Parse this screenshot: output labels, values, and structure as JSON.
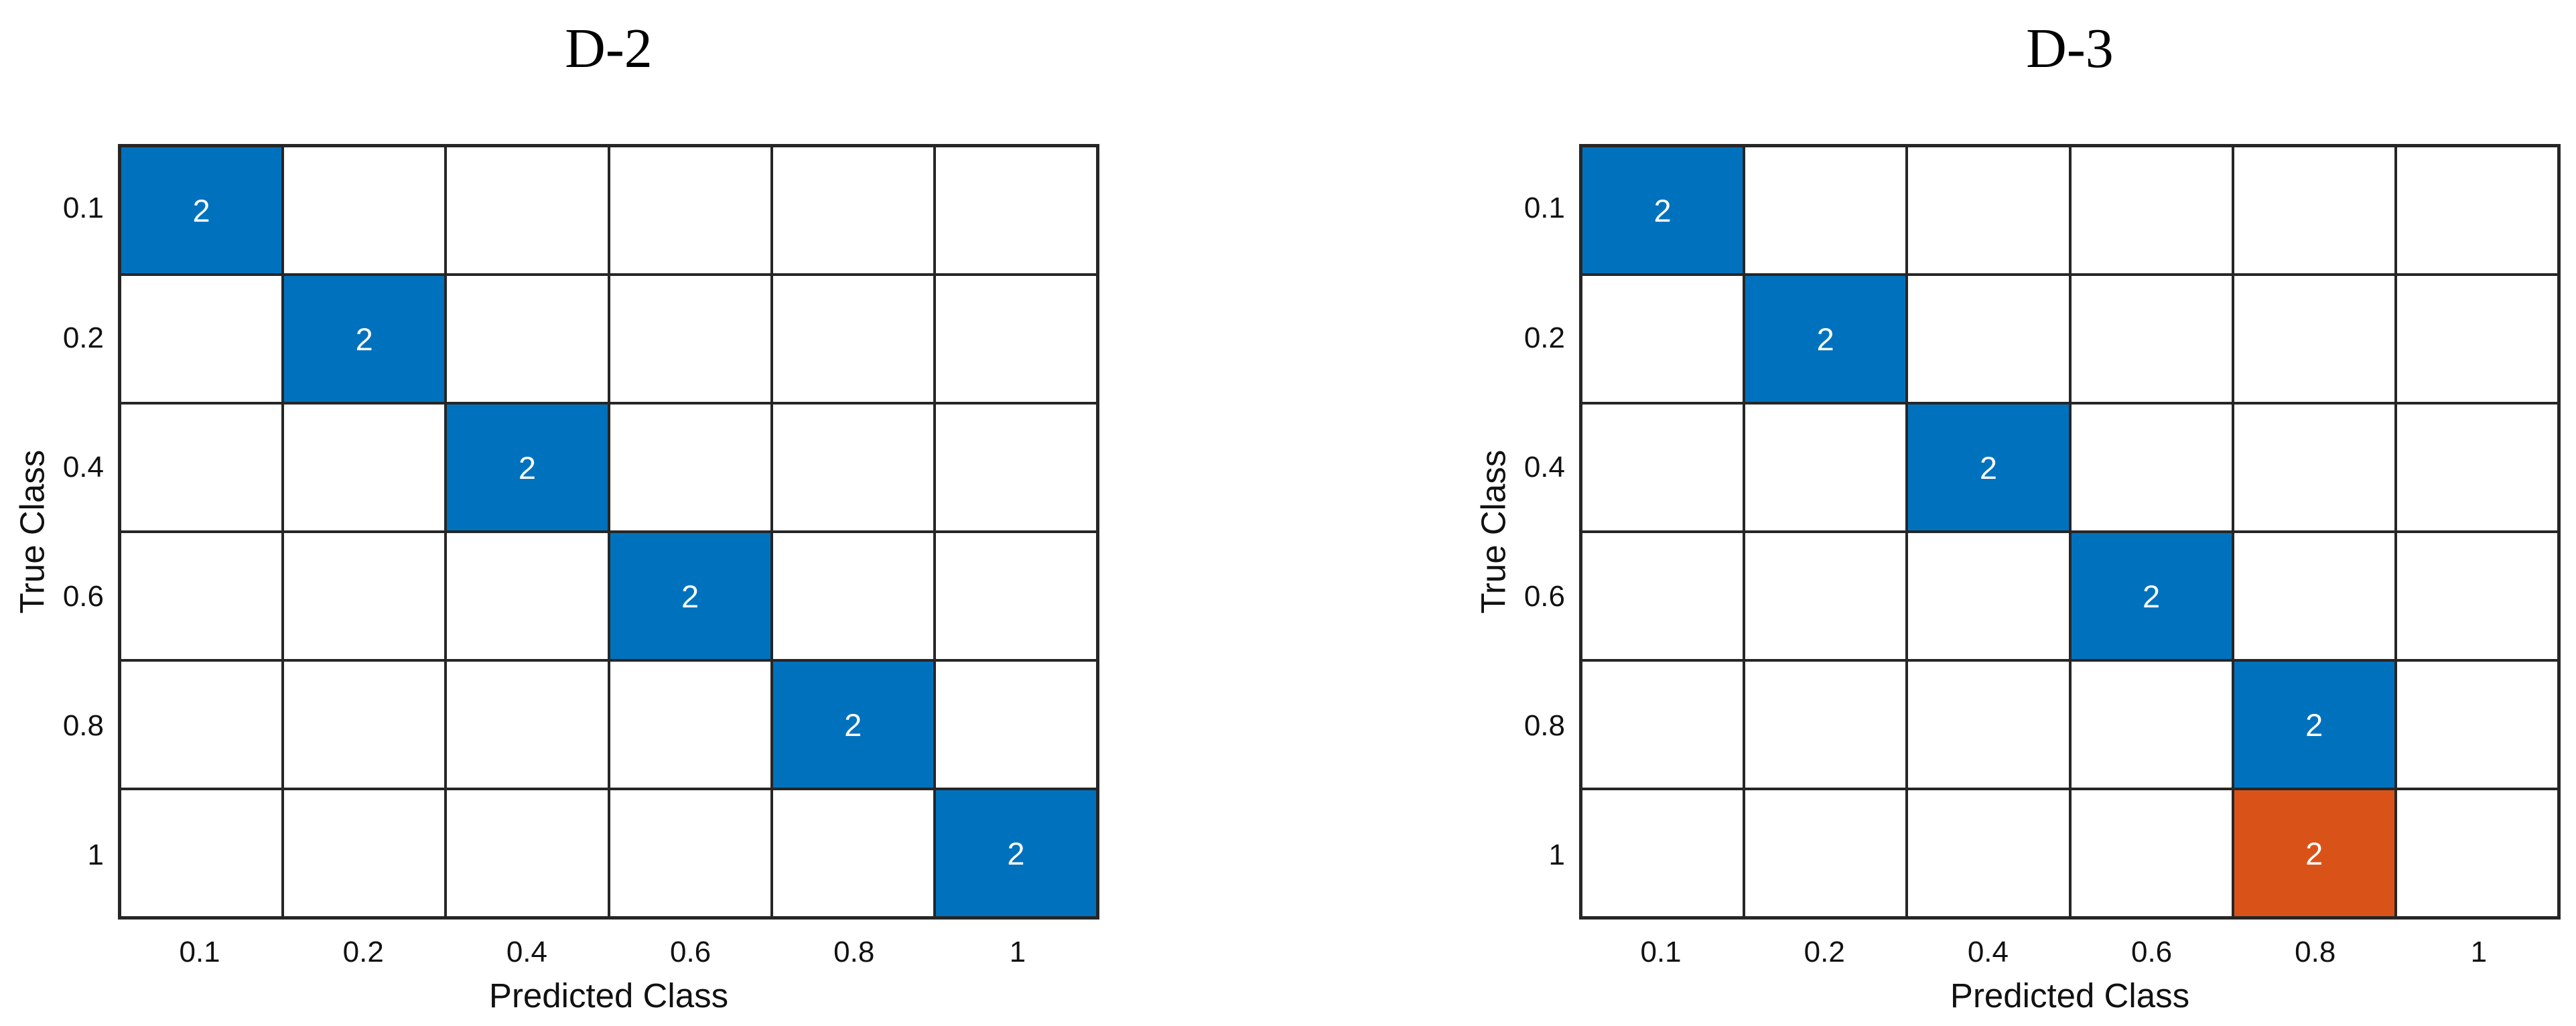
{
  "colors": {
    "diagonal_fill": "#0072BD",
    "off_diagonal_fill": "#D95319",
    "grid_line": "#262626",
    "cell_value_text": "#FFFFFF",
    "label_text": "#111111"
  },
  "chart_data": [
    {
      "type": "heatmap",
      "subtype": "confusion-matrix",
      "title": "D-2",
      "xlabel": "Predicted Class",
      "ylabel": "True Class",
      "x_categories": [
        "0.1",
        "0.2",
        "0.4",
        "0.6",
        "0.8",
        "1"
      ],
      "y_categories": [
        "0.1",
        "0.2",
        "0.4",
        "0.6",
        "0.8",
        "1"
      ],
      "grid": true,
      "legend": "none",
      "matrix": [
        [
          2,
          null,
          null,
          null,
          null,
          null
        ],
        [
          null,
          2,
          null,
          null,
          null,
          null
        ],
        [
          null,
          null,
          2,
          null,
          null,
          null
        ],
        [
          null,
          null,
          null,
          2,
          null,
          null
        ],
        [
          null,
          null,
          null,
          null,
          2,
          null
        ],
        [
          null,
          null,
          null,
          null,
          null,
          2
        ]
      ]
    },
    {
      "type": "heatmap",
      "subtype": "confusion-matrix",
      "title": "D-3",
      "xlabel": "Predicted Class",
      "ylabel": "True Class",
      "x_categories": [
        "0.1",
        "0.2",
        "0.4",
        "0.6",
        "0.8",
        "1"
      ],
      "y_categories": [
        "0.1",
        "0.2",
        "0.4",
        "0.6",
        "0.8",
        "1"
      ],
      "grid": true,
      "legend": "none",
      "matrix": [
        [
          2,
          null,
          null,
          null,
          null,
          null
        ],
        [
          null,
          2,
          null,
          null,
          null,
          null
        ],
        [
          null,
          null,
          2,
          null,
          null,
          null
        ],
        [
          null,
          null,
          null,
          2,
          null,
          null
        ],
        [
          null,
          null,
          null,
          null,
          2,
          null
        ],
        [
          null,
          null,
          null,
          null,
          2,
          null
        ]
      ]
    }
  ]
}
